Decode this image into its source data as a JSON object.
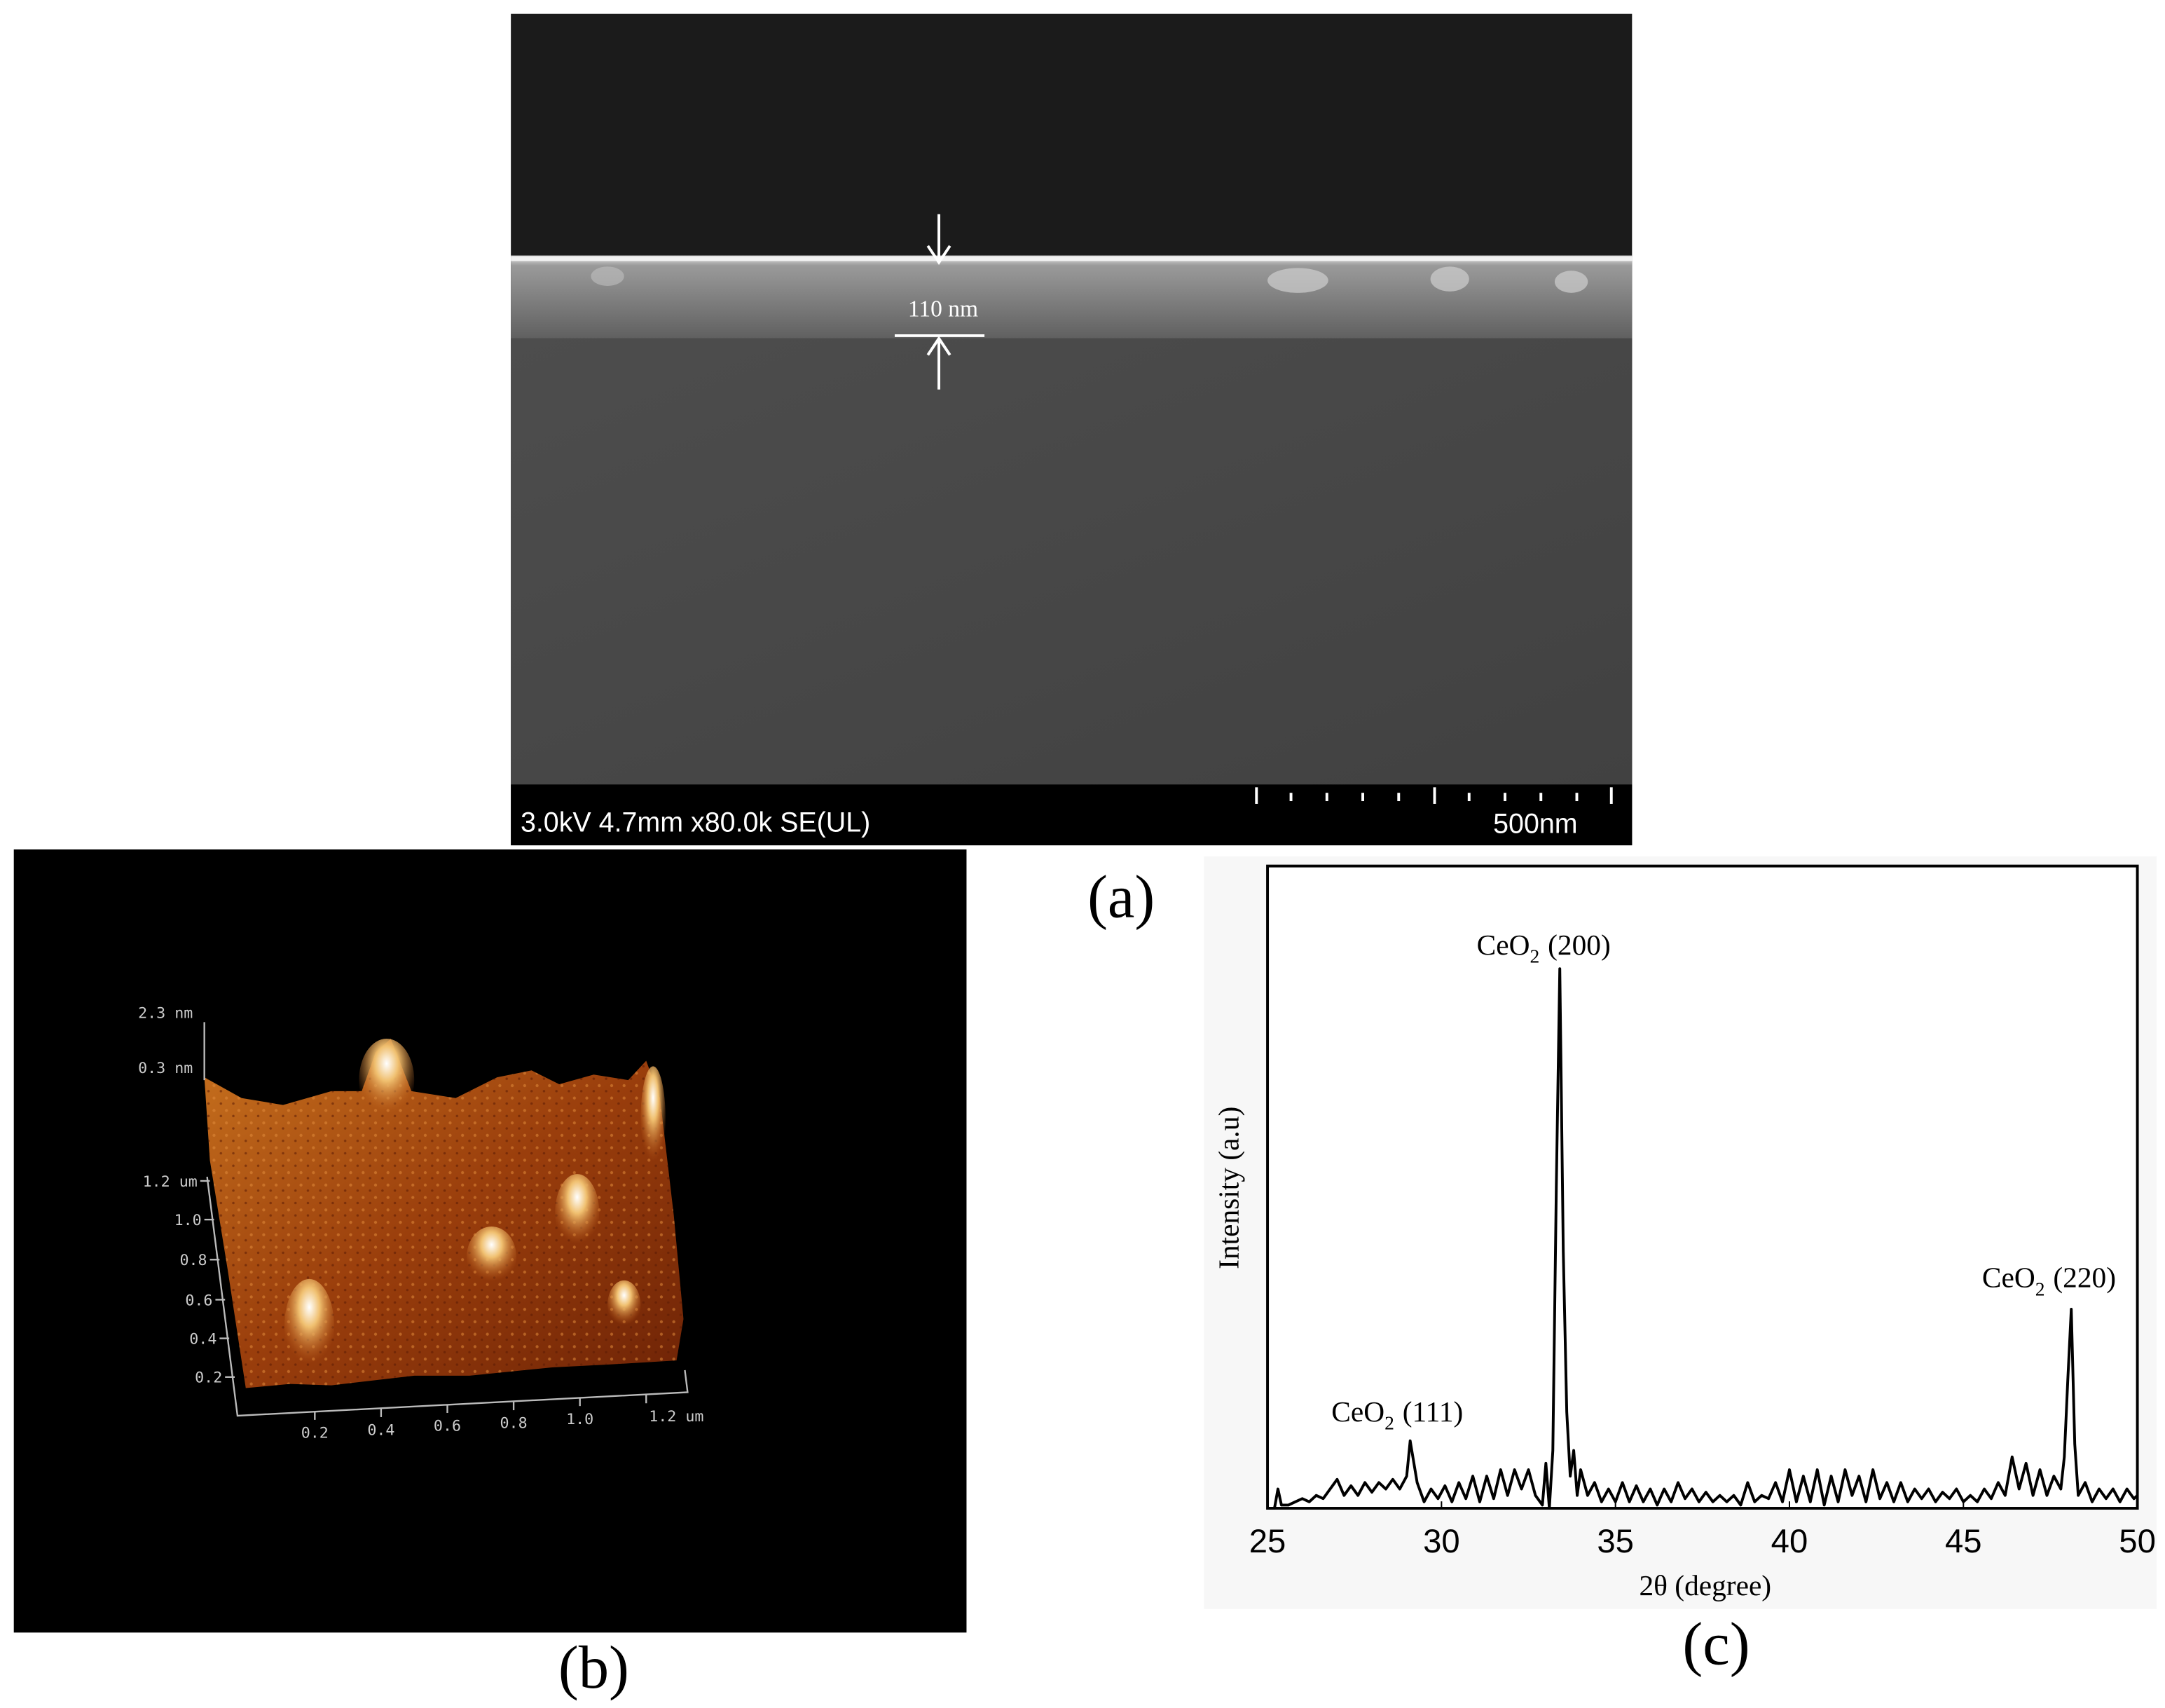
{
  "panel_a": {
    "annotation": "110 nm",
    "info": "3.0kV 4.7mm x80.0k SE(UL)",
    "scale_bar": "500nm",
    "caption": "(a)"
  },
  "panel_b": {
    "z_labels": [
      "2.3 nm",
      "0.3 nm"
    ],
    "y_labels": [
      "1.2 um",
      "1.0",
      "0.8",
      "0.6",
      "0.4",
      "0.2"
    ],
    "x_labels": [
      "0.2",
      "0.4",
      "0.6",
      "0.8",
      "1.0",
      "1.2 um"
    ],
    "caption": "(b)"
  },
  "panel_c": {
    "caption": "(c)"
  },
  "chart_data": {
    "type": "line",
    "xlabel": "2θ (degree)",
    "ylabel": "Intensity (a.u)",
    "xlim": [
      25,
      50
    ],
    "xticks": [
      25,
      30,
      35,
      40,
      45,
      50
    ],
    "ylim": [
      0,
      100
    ],
    "color": "#000000",
    "annotations": [
      {
        "text": "CeO",
        "sub": "2",
        "suffix": "(111)"
      },
      {
        "text": "CeO",
        "sub": "2",
        "suffix": "(200)"
      },
      {
        "text": "CeO",
        "sub": "2",
        "suffix": "(220)"
      }
    ],
    "x": [
      25.0,
      25.2,
      25.3,
      25.4,
      25.6,
      25.8,
      26.0,
      26.2,
      26.4,
      26.6,
      26.8,
      27.0,
      27.2,
      27.4,
      27.6,
      27.8,
      28.0,
      28.2,
      28.4,
      28.6,
      28.8,
      29.0,
      29.1,
      29.3,
      29.5,
      29.7,
      29.9,
      30.1,
      30.3,
      30.5,
      30.7,
      30.9,
      31.1,
      31.3,
      31.5,
      31.7,
      31.9,
      32.1,
      32.3,
      32.5,
      32.7,
      32.9,
      33.0,
      33.1,
      33.2,
      33.3,
      33.4,
      33.5,
      33.6,
      33.7,
      33.8,
      33.9,
      34.0,
      34.2,
      34.4,
      34.6,
      34.8,
      35.0,
      35.2,
      35.4,
      35.6,
      35.8,
      36.0,
      36.2,
      36.4,
      36.6,
      36.8,
      37.0,
      37.2,
      37.4,
      37.6,
      37.8,
      38.0,
      38.2,
      38.4,
      38.6,
      38.8,
      39.0,
      39.2,
      39.4,
      39.6,
      39.8,
      40.0,
      40.2,
      40.4,
      40.6,
      40.8,
      41.0,
      41.2,
      41.4,
      41.6,
      41.8,
      42.0,
      42.2,
      42.4,
      42.6,
      42.8,
      43.0,
      43.2,
      43.4,
      43.6,
      43.8,
      44.0,
      44.2,
      44.4,
      44.6,
      44.8,
      45.0,
      45.2,
      45.4,
      45.6,
      45.8,
      46.0,
      46.2,
      46.4,
      46.6,
      46.8,
      47.0,
      47.2,
      47.4,
      47.6,
      47.8,
      47.9,
      48.0,
      48.1,
      48.2,
      48.3,
      48.5,
      48.7,
      48.9,
      49.1,
      49.3,
      49.5,
      49.7,
      49.9,
      50.0
    ],
    "values": [
      0,
      0,
      3,
      0.5,
      0.5,
      1,
      1.5,
      1,
      2,
      1.5,
      3,
      4.5,
      2,
      3.5,
      2,
      4,
      2.5,
      4,
      3,
      4.5,
      3,
      5,
      10.5,
      4,
      1,
      3,
      1.5,
      3.5,
      1,
      4,
      1.5,
      5,
      1,
      5,
      1.5,
      6,
      2,
      6,
      3,
      6,
      2,
      0.5,
      7,
      0,
      9,
      50,
      84,
      40,
      15,
      5,
      9,
      2,
      6,
      2,
      4,
      1,
      3,
      1,
      4,
      1,
      3.5,
      1,
      3,
      0.5,
      3,
      1,
      4,
      1.5,
      3,
      1,
      2.5,
      1,
      2,
      1,
      2,
      0.5,
      4,
      1,
      2,
      1.5,
      4,
      1,
      6,
      1,
      5,
      1,
      6,
      0.5,
      5,
      1,
      6,
      2,
      5,
      1,
      6,
      1.5,
      4,
      1,
      4,
      1,
      3,
      1.5,
      3,
      1,
      2.5,
      1.5,
      3,
      1,
      2,
      1,
      3,
      1.5,
      4,
      2,
      8,
      3,
      7,
      2,
      6,
      2,
      5,
      3,
      8,
      20,
      31,
      10,
      2,
      4,
      1,
      3,
      1.5,
      3,
      1,
      3,
      1.5,
      2
    ]
  }
}
